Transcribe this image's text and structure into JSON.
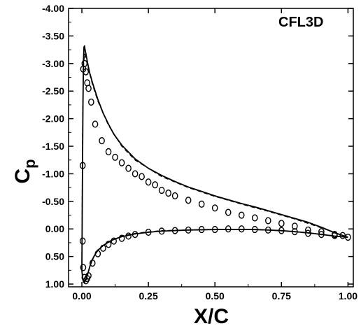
{
  "chart_data": {
    "type": "line",
    "title": "",
    "annotation": "CFL3D",
    "xlabel": "X/C",
    "ylabel": "C",
    "ylabel_subscript": "p",
    "xlim": [
      -0.05,
      1.02
    ],
    "ylim": [
      1.05,
      -4.0
    ],
    "y_inverted": true,
    "grid": false,
    "x_ticks": [
      "0.00",
      "0.25",
      "0.50",
      "0.75",
      "1.00"
    ],
    "y_ticks": [
      "-4.00",
      "-3.50",
      "-3.00",
      "-2.50",
      "-2.00",
      "-1.50",
      "-1.00",
      "-0.50",
      "0.00",
      "0.50",
      "1.00"
    ],
    "series": [
      {
        "style": "solid-line",
        "x": [
          1.0,
          0.95,
          0.9,
          0.85,
          0.8,
          0.75,
          0.7,
          0.65,
          0.6,
          0.55,
          0.5,
          0.45,
          0.4,
          0.35,
          0.3,
          0.25,
          0.2,
          0.15,
          0.12,
          0.1,
          0.08,
          0.06,
          0.05,
          0.04,
          0.03,
          0.025,
          0.02,
          0.015,
          0.012,
          0.01,
          0.008,
          0.006,
          0.004,
          0.002,
          0.0,
          0.002,
          0.004,
          0.006,
          0.01,
          0.015,
          0.02,
          0.03,
          0.04,
          0.05,
          0.06,
          0.08,
          0.1,
          0.12,
          0.15,
          0.2,
          0.25,
          0.3,
          0.35,
          0.4,
          0.45,
          0.5,
          0.55,
          0.6,
          0.65,
          0.7,
          0.75,
          0.8,
          0.85,
          0.9,
          0.95,
          1.0
        ],
        "y": [
          0.15,
          0.07,
          -0.03,
          -0.12,
          -0.19,
          -0.26,
          -0.33,
          -0.4,
          -0.46,
          -0.53,
          -0.6,
          -0.68,
          -0.76,
          -0.86,
          -0.97,
          -1.1,
          -1.27,
          -1.52,
          -1.72,
          -1.9,
          -2.1,
          -2.35,
          -2.5,
          -2.65,
          -2.82,
          -2.93,
          -3.05,
          -3.18,
          -3.25,
          -3.32,
          -3.3,
          -3.05,
          -2.2,
          -0.8,
          0.75,
          0.85,
          0.92,
          0.96,
          0.97,
          0.92,
          0.85,
          0.68,
          0.55,
          0.46,
          0.39,
          0.3,
          0.24,
          0.19,
          0.14,
          0.09,
          0.06,
          0.04,
          0.03,
          0.02,
          0.015,
          0.01,
          0.01,
          0.01,
          0.01,
          0.02,
          0.03,
          0.05,
          0.07,
          0.1,
          0.13,
          0.15
        ]
      },
      {
        "style": "dashed-line",
        "x": [
          1.0,
          0.9,
          0.8,
          0.7,
          0.6,
          0.5,
          0.4,
          0.3,
          0.2,
          0.15,
          0.1,
          0.06,
          0.04,
          0.025,
          0.015,
          0.01,
          0.006,
          0.003,
          0.0,
          0.003,
          0.006,
          0.01,
          0.02,
          0.04,
          0.06,
          0.1,
          0.15,
          0.2,
          0.3,
          0.4,
          0.5,
          0.6,
          0.7,
          0.8,
          0.9,
          1.0
        ],
        "y": [
          0.15,
          -0.02,
          -0.18,
          -0.32,
          -0.45,
          -0.59,
          -0.75,
          -0.95,
          -1.25,
          -1.5,
          -1.88,
          -2.32,
          -2.62,
          -2.9,
          -3.1,
          -3.18,
          -2.95,
          -2.0,
          0.75,
          0.86,
          0.93,
          0.96,
          0.84,
          0.54,
          0.38,
          0.23,
          0.13,
          0.08,
          0.03,
          0.02,
          0.01,
          0.01,
          0.02,
          0.05,
          0.1,
          0.15
        ]
      },
      {
        "style": "open-circles",
        "x": [
          0.005,
          0.01,
          0.015,
          0.02,
          0.025,
          0.035,
          0.05,
          0.075,
          0.1,
          0.125,
          0.15,
          0.175,
          0.2,
          0.225,
          0.25,
          0.275,
          0.3,
          0.325,
          0.35,
          0.4,
          0.45,
          0.5,
          0.55,
          0.6,
          0.65,
          0.7,
          0.75,
          0.8,
          0.85,
          0.9,
          0.95,
          0.98,
          0.003,
          0.003,
          0.005,
          0.01,
          0.015,
          0.02,
          0.025,
          0.04,
          0.06,
          0.08,
          0.1,
          0.12,
          0.15,
          0.175,
          0.2,
          0.25,
          0.3,
          0.35,
          0.4,
          0.45,
          0.5,
          0.55,
          0.6,
          0.65,
          0.7,
          0.75,
          0.8,
          0.85,
          0.9,
          0.95,
          1.0
        ],
        "y": [
          -2.9,
          -3.0,
          -2.85,
          -2.65,
          -2.55,
          -2.3,
          -1.9,
          -1.6,
          -1.4,
          -1.3,
          -1.2,
          -1.1,
          -1.0,
          -0.95,
          -0.85,
          -0.8,
          -0.7,
          -0.65,
          -0.6,
          -0.52,
          -0.45,
          -0.38,
          -0.3,
          -0.25,
          -0.2,
          -0.15,
          -0.1,
          -0.05,
          0.02,
          0.05,
          0.1,
          0.12,
          -1.15,
          0.22,
          0.7,
          0.88,
          0.94,
          0.9,
          0.85,
          0.62,
          0.45,
          0.35,
          0.28,
          0.22,
          0.17,
          0.13,
          0.1,
          0.06,
          0.04,
          0.03,
          0.02,
          0.01,
          0.01,
          0.0,
          0.0,
          0.01,
          0.02,
          0.03,
          0.05,
          0.08,
          0.1,
          0.12,
          0.15
        ]
      }
    ]
  }
}
